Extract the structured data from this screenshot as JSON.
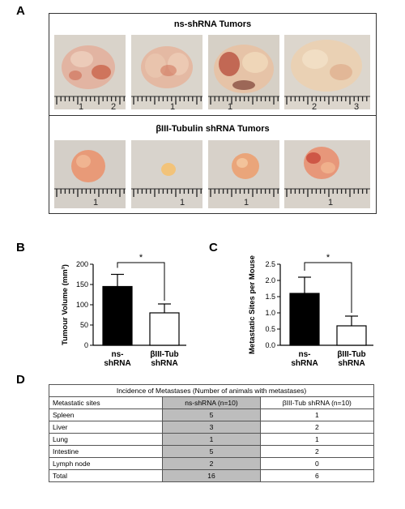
{
  "panels": {
    "a": {
      "letter": "A",
      "top_title": "ns-shRNA Tumors",
      "bottom_title": "βIII-Tubulin shRNA Tumors",
      "top_rulers": [
        [
          "1",
          "2"
        ],
        [
          "1"
        ],
        [
          "1"
        ],
        [
          "2",
          "3"
        ]
      ],
      "bottom_rulers": [
        [
          "1"
        ],
        [
          "1"
        ],
        [
          "1"
        ],
        [
          "1"
        ]
      ]
    },
    "b": {
      "letter": "B"
    },
    "c": {
      "letter": "C"
    },
    "d": {
      "letter": "D"
    }
  },
  "chart_data": [
    {
      "type": "bar",
      "ylabel": "Tumour Volume (mm³)",
      "categories": [
        [
          "ns-",
          "shRNA"
        ],
        [
          "βIII-Tub",
          "shRNA"
        ]
      ],
      "values": [
        145,
        80
      ],
      "errors": [
        30,
        22
      ],
      "ylim": [
        0,
        200
      ],
      "yticks": [
        "0",
        "50",
        "100",
        "150",
        "200"
      ],
      "significance": "*",
      "bar_colors": [
        "#000000",
        "#ffffff"
      ]
    },
    {
      "type": "bar",
      "ylabel": "Metastatic Sites per Mouse",
      "categories": [
        [
          "ns-",
          "shRNA"
        ],
        [
          "βIII-Tub",
          "shRNA"
        ]
      ],
      "values": [
        1.6,
        0.6
      ],
      "errors": [
        0.5,
        0.3
      ],
      "ylim": [
        0,
        2.5
      ],
      "yticks": [
        "0.0",
        "0.5",
        "1.0",
        "1.5",
        "2.0",
        "2.5"
      ],
      "significance": "*",
      "bar_colors": [
        "#000000",
        "#ffffff"
      ]
    },
    {
      "type": "table",
      "title": "Incidence of Metastases (Number of animals with metastases)",
      "header": [
        "Metastatic sites",
        "ns-shRNA (n=10)",
        "βIII-Tub shRNA (n=10)"
      ],
      "rows": [
        [
          "Spleen",
          "5",
          "1"
        ],
        [
          "Liver",
          "3",
          "2"
        ],
        [
          "Lung",
          "1",
          "1"
        ],
        [
          "Intestine",
          "5",
          "2"
        ],
        [
          "Lymph node",
          "2",
          "0"
        ],
        [
          "Total",
          "16",
          "6"
        ]
      ]
    }
  ]
}
